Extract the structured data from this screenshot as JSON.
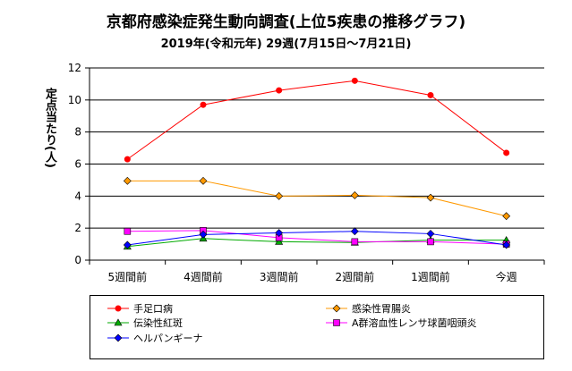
{
  "chart_data": {
    "type": "line",
    "title": "京都府感染症発生動向調査(上位5疾患の推移グラフ)",
    "subtitle": "2019年(令和元年) 29週(7月15日～7月21日)",
    "ylabel": "定点当たり(人)",
    "xlabel": "",
    "categories": [
      "5週間前",
      "4週間前",
      "3週間前",
      "2週間前",
      "1週間前",
      "今週"
    ],
    "ylim": [
      0,
      12
    ],
    "yticks": [
      0,
      2,
      4,
      6,
      8,
      10,
      12
    ],
    "grid": true,
    "legend_position": "bottom",
    "series": [
      {
        "name": "手足口病",
        "color": "#ff0000",
        "marker": "circle",
        "values": [
          6.3,
          9.7,
          10.6,
          11.2,
          10.3,
          6.7
        ]
      },
      {
        "name": "感染性胃腸炎",
        "color": "#ff9900",
        "marker": "diamond",
        "values": [
          4.95,
          4.95,
          4.0,
          4.05,
          3.9,
          2.75
        ]
      },
      {
        "name": "伝染性紅斑",
        "color": "#00aa00",
        "marker": "triangle",
        "values": [
          0.85,
          1.35,
          1.15,
          1.1,
          1.25,
          1.25
        ]
      },
      {
        "name": "A群溶血性レンサ球菌咽頭炎",
        "color": "#ff00ff",
        "marker": "square",
        "values": [
          1.8,
          1.85,
          1.4,
          1.15,
          1.15,
          1.0
        ]
      },
      {
        "name": "ヘルパンギーナ",
        "color": "#0000ff",
        "marker": "diamond",
        "values": [
          0.95,
          1.6,
          1.7,
          1.8,
          1.65,
          0.95
        ]
      }
    ]
  }
}
